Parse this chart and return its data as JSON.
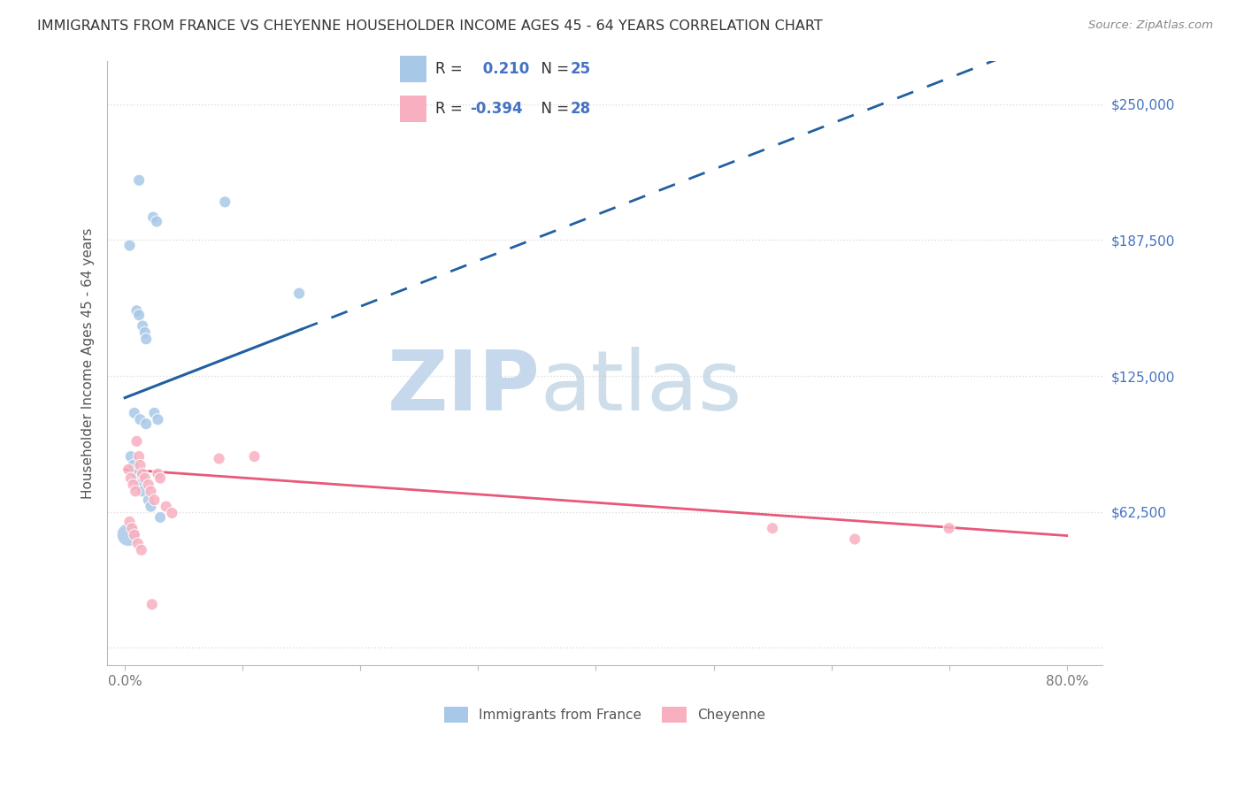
{
  "title": "IMMIGRANTS FROM FRANCE VS CHEYENNE HOUSEHOLDER INCOME AGES 45 - 64 YEARS CORRELATION CHART",
  "source": "Source: ZipAtlas.com",
  "ylabel": "Householder Income Ages 45 - 64 years",
  "x_ticks": [
    0.0,
    10.0,
    20.0,
    30.0,
    40.0,
    50.0,
    60.0,
    70.0,
    80.0
  ],
  "x_tick_labels": [
    "0.0%",
    "",
    "",
    "",
    "",
    "",
    "",
    "",
    "80.0%"
  ],
  "y_ticks": [
    0,
    62500,
    125000,
    187500,
    250000
  ],
  "y_tick_labels": [
    "",
    "$62,500",
    "$125,000",
    "$187,500",
    "$250,000"
  ],
  "xlim": [
    -1.5,
    83.0
  ],
  "ylim": [
    -8000,
    270000
  ],
  "legend_blue_r": "0.210",
  "legend_blue_n": "25",
  "legend_pink_r": "-0.394",
  "legend_pink_n": "28",
  "blue_color": "#a8c8e8",
  "pink_color": "#f8b0c0",
  "blue_line_color": "#2060a0",
  "pink_line_color": "#e85878",
  "blue_line_solid_end": 15.0,
  "blue_line_intercept": 115000,
  "blue_line_slope": 2100,
  "pink_line_intercept": 82000,
  "pink_line_slope": -380,
  "background_color": "#ffffff",
  "grid_color": "#dddddd",
  "watermark_zip_color": "#c5d8ec",
  "watermark_atlas_color": "#b8cfe0"
}
